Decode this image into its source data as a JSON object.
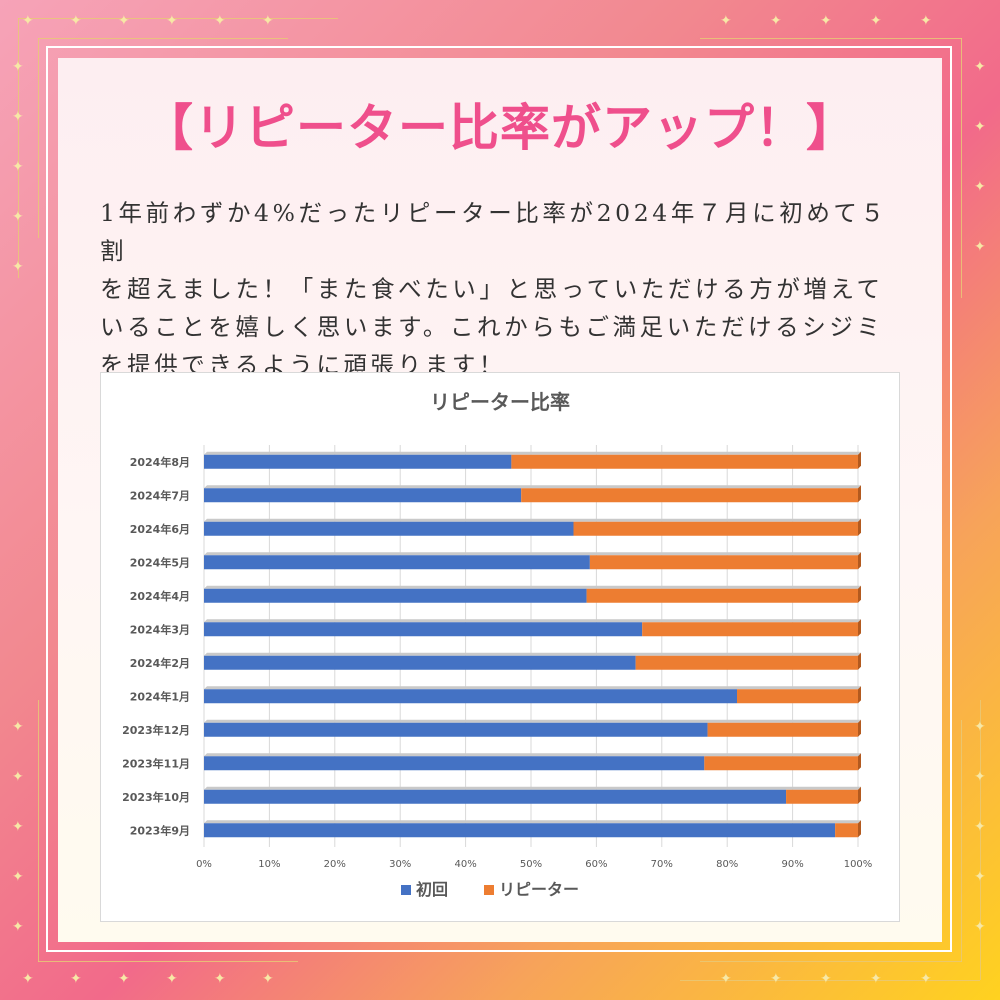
{
  "title": "【リピーター比率がアップ！】",
  "body": {
    "lines": [
      "1年前わずか4%だったリピーター比率が2024年７月に初めて５割",
      "を超えました！「また食べたい」と思っていただける方が増えて",
      "いることを嬉しく思います。これからもご満足いただけるシジミ",
      "を提供できるように頑張ります！"
    ]
  },
  "colors": {
    "title": "#ef4f8c",
    "first_time": "#4472c4",
    "repeater": "#ed7d31",
    "axis_text": "#595959",
    "grid": "#d9d9d9"
  },
  "chart_data": {
    "type": "bar",
    "orientation": "horizontal",
    "stacked": "percent",
    "title": "リピーター比率",
    "categories": [
      "2024年8月",
      "2024年7月",
      "2024年6月",
      "2024年5月",
      "2024年4月",
      "2024年3月",
      "2024年2月",
      "2024年1月",
      "2023年12月",
      "2023年11月",
      "2023年10月",
      "2023年9月"
    ],
    "series": [
      {
        "name": "初回",
        "values": [
          47,
          48.5,
          56.5,
          59,
          58.5,
          67,
          66,
          81.5,
          77,
          76.5,
          89,
          96.5
        ]
      },
      {
        "name": "リピーター",
        "values": [
          53,
          51.5,
          43.5,
          41,
          41.5,
          33,
          34,
          18.5,
          23,
          23.5,
          11,
          3.5
        ]
      }
    ],
    "xlim": [
      0,
      100
    ],
    "xticks": [
      "0%",
      "10%",
      "20%",
      "30%",
      "40%",
      "50%",
      "60%",
      "70%",
      "80%",
      "90%",
      "100%"
    ],
    "xlabel": "",
    "ylabel": "",
    "grid": true,
    "legend": "bottom"
  }
}
